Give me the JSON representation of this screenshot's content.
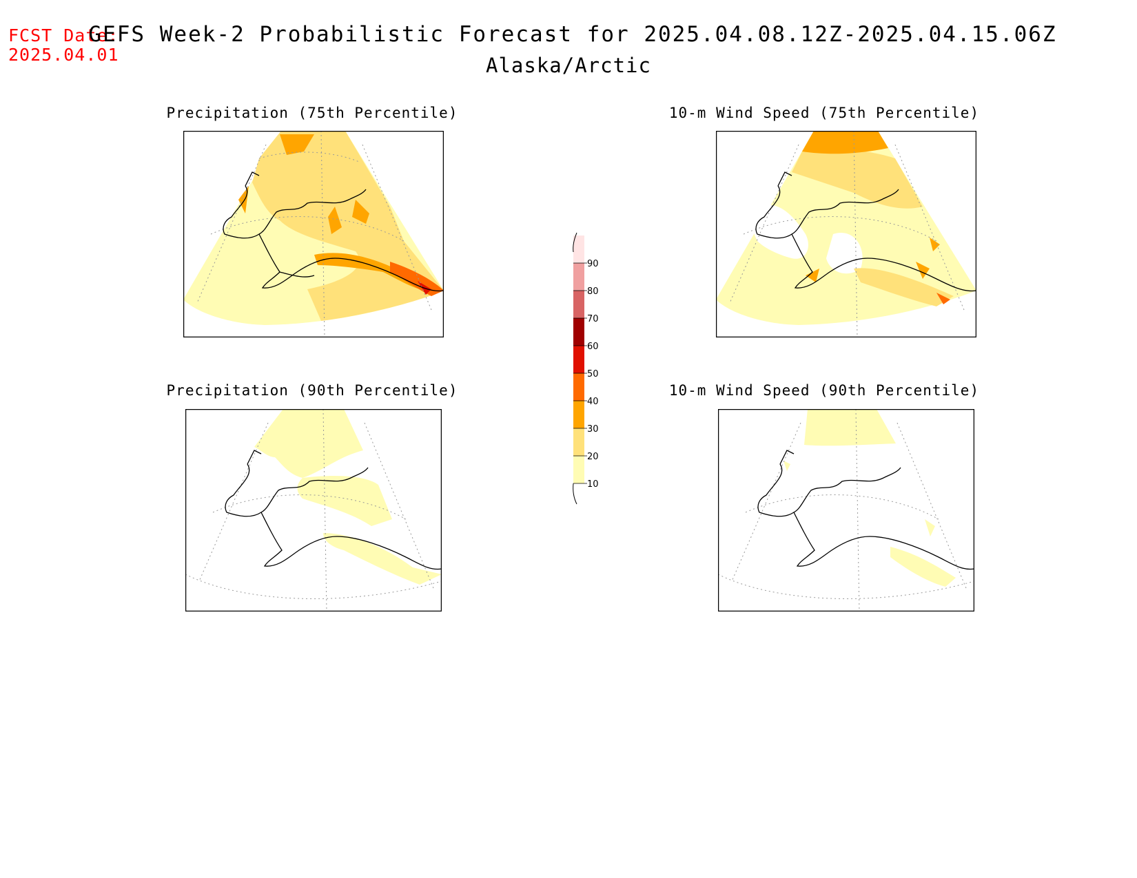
{
  "header": {
    "fcst_label": "FCST Date:",
    "fcst_date": "2025.04.01",
    "title": "GEFS Week-2 Probabilistic Forecast for 2025.04.08.12Z-2025.04.15.06Z",
    "region": "Alaska/Arctic"
  },
  "panels": [
    {
      "title": "Precipitation (75th Percentile)",
      "variable": "precipitation",
      "percentile": 75
    },
    {
      "title": "10-m Wind Speed (75th Percentile)",
      "variable": "wind",
      "percentile": 75
    },
    {
      "title": "Precipitation (90th Percentile)",
      "variable": "precipitation",
      "percentile": 90
    },
    {
      "title": "10-m Wind Speed (90th Percentile)",
      "variable": "wind",
      "percentile": 90
    }
  ],
  "legend": {
    "levels": [
      "10",
      "20",
      "30",
      "40",
      "50",
      "60",
      "70",
      "80",
      "90"
    ],
    "colors": [
      "#fffcb4",
      "#ffe17a",
      "#ffa500",
      "#ff6a00",
      "#e01000",
      "#a00000",
      "#d86464",
      "#f0a0a0",
      "#ffe4e4"
    ]
  }
}
